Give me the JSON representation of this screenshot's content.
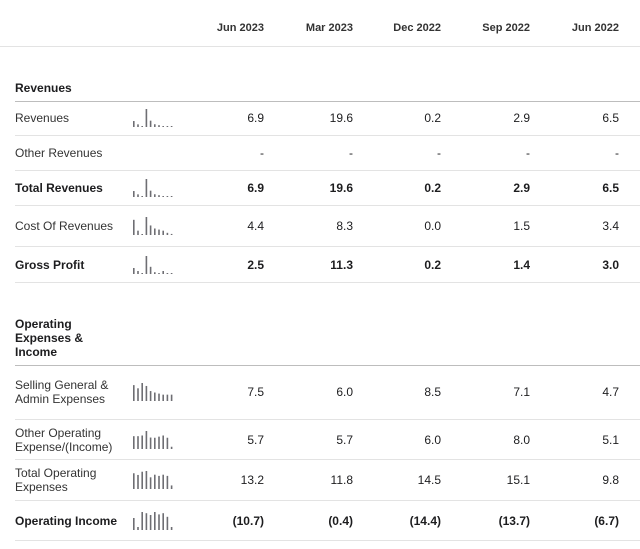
{
  "columns": [
    "Jun 2023",
    "Mar 2023",
    "Dec 2022",
    "Sep 2022",
    "Jun 2022"
  ],
  "sections": [
    {
      "title": "Revenues",
      "rows": [
        {
          "label": "Revenues",
          "bold": false,
          "values": [
            "6.9",
            "19.6",
            "0.2",
            "2.9",
            "6.5"
          ],
          "trend": [
            6.5,
            2.9,
            0.2,
            19.6,
            6.9,
            3,
            2,
            1,
            0.5,
            0.4
          ]
        },
        {
          "label": "Other Revenues",
          "bold": false,
          "values": [
            "-",
            "-",
            "-",
            "-",
            "-"
          ],
          "trend": []
        },
        {
          "label": "Total Revenues",
          "bold": true,
          "values": [
            "6.9",
            "19.6",
            "0.2",
            "2.9",
            "6.5"
          ],
          "trend": [
            6.5,
            2.9,
            0.2,
            19.6,
            6.9,
            3,
            2,
            1,
            0.5,
            0.4
          ]
        },
        {
          "label": "Cost Of Revenues",
          "bold": false,
          "values": [
            "4.4",
            "8.3",
            "0.0",
            "1.5",
            "3.4"
          ],
          "trend": [
            7,
            2,
            0.1,
            8.3,
            4.4,
            3,
            2.5,
            2,
            1,
            0.5
          ]
        },
        {
          "label": "Gross Profit",
          "bold": true,
          "values": [
            "2.5",
            "11.3",
            "0.2",
            "1.4",
            "3.0"
          ],
          "trend": [
            1,
            0.5,
            0.1,
            3,
            1.2,
            0.3,
            0.1,
            0.5,
            0.1,
            0.1
          ]
        }
      ]
    },
    {
      "title": "Operating Expenses & Income",
      "rows": [
        {
          "label": "Selling General & Admin Expenses",
          "bold": false,
          "values": [
            "7.5",
            "6.0",
            "8.5",
            "7.1",
            "4.7"
          ],
          "trend": [
            7.5,
            6.0,
            8.5,
            7.1,
            4.7,
            4,
            3.5,
            3,
            3,
            3
          ]
        },
        {
          "label": "Other Operating Expense/(Income)",
          "bold": false,
          "values": [
            "5.7",
            "5.7",
            "6.0",
            "8.0",
            "5.1"
          ],
          "trend": [
            5.7,
            5.7,
            6.0,
            8.0,
            5.1,
            5,
            5.5,
            6,
            5,
            1
          ]
        },
        {
          "label": "Total Operating Expenses",
          "bold": false,
          "values": [
            "13.2",
            "11.8",
            "14.5",
            "15.1",
            "9.8"
          ],
          "trend": [
            13.2,
            11.8,
            14.5,
            15.1,
            9.8,
            12,
            11,
            12,
            11,
            3
          ]
        },
        {
          "label": "Operating Income",
          "bold": true,
          "values": [
            "(10.7)",
            "(0.4)",
            "(14.4)",
            "(13.7)",
            "(6.7)"
          ],
          "trend": [
            2,
            0.5,
            3,
            2.8,
            2.5,
            3,
            2.6,
            2.8,
            2.2,
            0.5
          ]
        }
      ]
    }
  ]
}
